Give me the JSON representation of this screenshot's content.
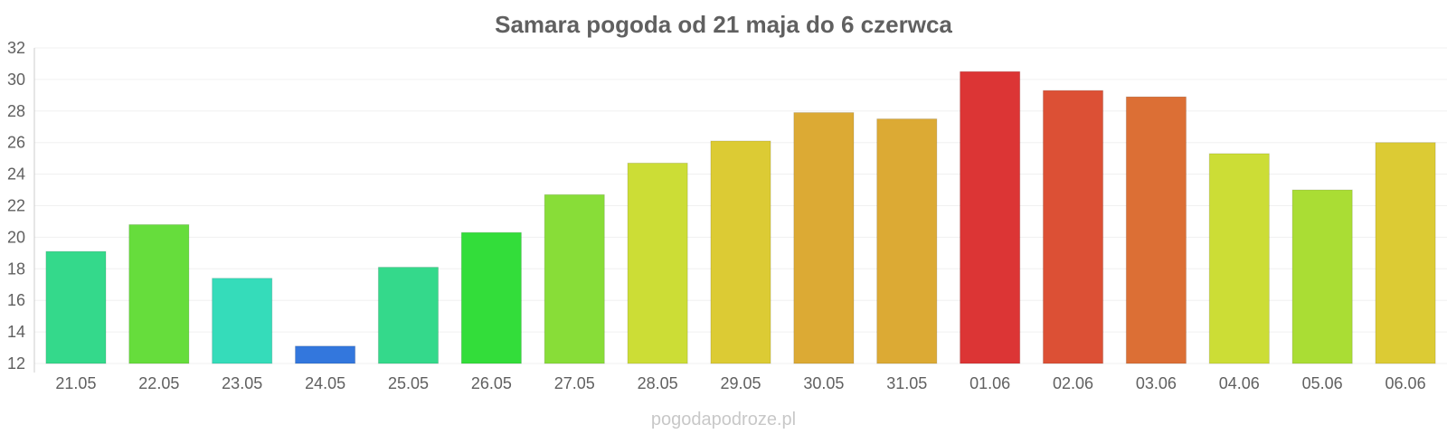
{
  "chart_data": {
    "type": "bar",
    "title": "Samara pogoda od 21 maja do 6 czerwca",
    "xlabel": "",
    "ylabel": "",
    "ylim": [
      12,
      32
    ],
    "yticks": [
      "12",
      "14",
      "16",
      "18",
      "20",
      "22",
      "24",
      "26",
      "28",
      "30",
      "32"
    ],
    "grid": true,
    "categories": [
      "21.05",
      "22.05",
      "23.05",
      "24.05",
      "25.05",
      "26.05",
      "27.05",
      "28.05",
      "29.05",
      "30.05",
      "31.05",
      "01.06",
      "02.06",
      "03.06",
      "04.06",
      "05.06",
      "06.06"
    ],
    "values": [
      19.1,
      20.8,
      17.4,
      13.1,
      18.1,
      20.3,
      22.7,
      24.7,
      26.1,
      27.9,
      27.5,
      30.5,
      29.3,
      28.9,
      25.3,
      23.0,
      26.0
    ],
    "colors": [
      "#34d98b",
      "#66dd3c",
      "#35dcba",
      "#3377dd",
      "#34d98b",
      "#33dd3a",
      "#88dd38",
      "#ccdd36",
      "#dccb34",
      "#dcaa34",
      "#dcaa34",
      "#dc3535",
      "#dc5035",
      "#dc6f35",
      "#ccdd36",
      "#aadd34",
      "#dccb34"
    ]
  },
  "watermark": "pogodapodroze.pl"
}
